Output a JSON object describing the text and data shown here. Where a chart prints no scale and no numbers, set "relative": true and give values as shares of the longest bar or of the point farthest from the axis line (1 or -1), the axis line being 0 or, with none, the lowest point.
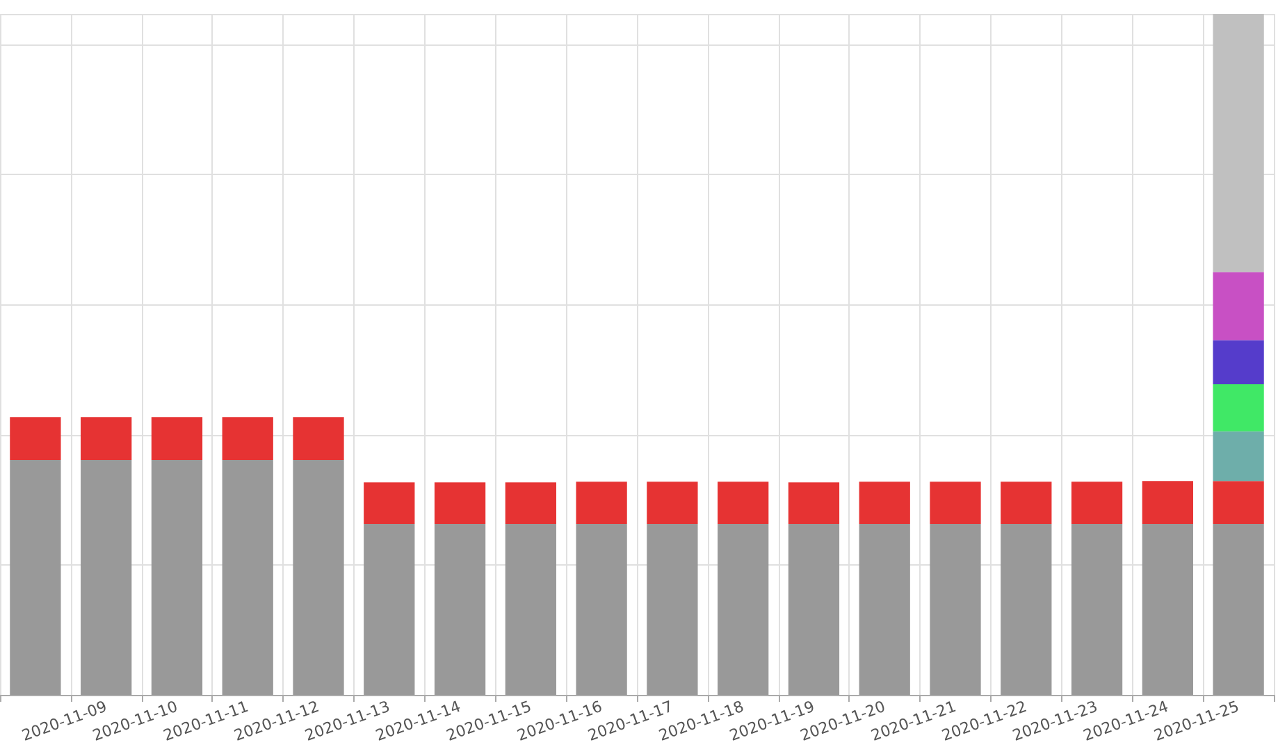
{
  "chart_data": {
    "type": "bar",
    "stacked": true,
    "relative": true,
    "grid": true,
    "categories": [
      null,
      "2020-11-09",
      "2020-11-10",
      "2020-11-11",
      "2020-11-12",
      "2020-11-13",
      "2020-11-14",
      "2020-11-15",
      "2020-11-16",
      "2020-11-17",
      "2020-11-18",
      "2020-11-19",
      "2020-11-20",
      "2020-11-21",
      "2020-11-22",
      "2020-11-23",
      "2020-11-24",
      "2020-11-25"
    ],
    "series": [
      {
        "color": "#999999",
        "values": [
          0.345,
          0.345,
          0.345,
          0.345,
          0.345,
          0.251,
          0.251,
          0.251,
          0.251,
          0.251,
          0.251,
          0.251,
          0.251,
          0.251,
          0.251,
          0.251,
          0.251,
          0.251
        ]
      },
      {
        "color": "#e63333",
        "values": [
          0.063,
          0.063,
          0.063,
          0.063,
          0.063,
          0.061,
          0.061,
          0.061,
          0.062,
          0.062,
          0.062,
          0.061,
          0.062,
          0.062,
          0.062,
          0.062,
          0.063,
          0.063
        ]
      },
      {
        "color": "#6eaeaa",
        "values": [
          null,
          null,
          null,
          null,
          null,
          null,
          null,
          null,
          null,
          null,
          null,
          null,
          null,
          null,
          null,
          null,
          null,
          0.073
        ]
      },
      {
        "color": "#40e866",
        "values": [
          null,
          null,
          null,
          null,
          null,
          null,
          null,
          null,
          null,
          null,
          null,
          null,
          null,
          null,
          null,
          null,
          null,
          0.069
        ]
      },
      {
        "color": "#553ccb",
        "values": [
          null,
          null,
          null,
          null,
          null,
          null,
          null,
          null,
          null,
          null,
          null,
          null,
          null,
          null,
          null,
          null,
          null,
          0.065
        ]
      },
      {
        "color": "#c850c4",
        "values": [
          null,
          null,
          null,
          null,
          null,
          null,
          null,
          null,
          null,
          null,
          null,
          null,
          null,
          null,
          null,
          null,
          null,
          0.1
        ]
      },
      {
        "color": "#c0c0c0",
        "values": [
          null,
          null,
          null,
          null,
          null,
          null,
          null,
          null,
          null,
          null,
          null,
          null,
          null,
          null,
          null,
          null,
          null,
          0.379
        ]
      }
    ]
  }
}
